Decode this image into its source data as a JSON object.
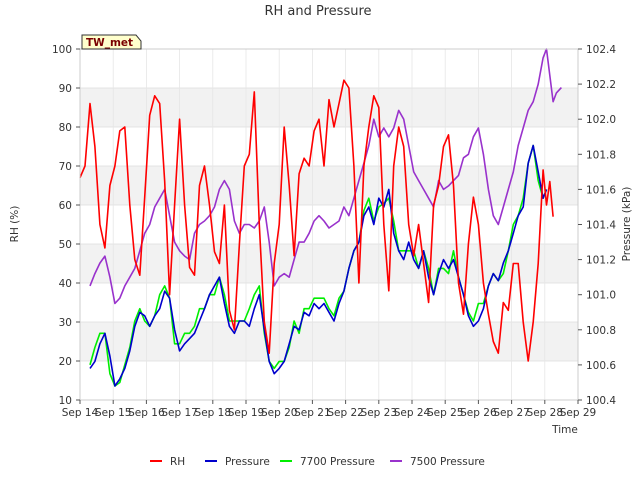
{
  "chart_data": {
    "type": "line",
    "title": "RH and Pressure",
    "xlabel": "Time",
    "ylabel_left": "RH (%)",
    "ylabel_right": "Pressure (kPa)",
    "badge": "TW_met",
    "x_ticks": [
      "Sep 14",
      "Sep 15",
      "Sep 16",
      "Sep 17",
      "Sep 18",
      "Sep 19",
      "Sep 20",
      "Sep 21",
      "Sep 22",
      "Sep 23",
      "Sep 24",
      "Sep 25",
      "Sep 26",
      "Sep 27",
      "Sep 28",
      "Sep 29"
    ],
    "xlim": [
      14,
      29
    ],
    "ylim_left": [
      10,
      100
    ],
    "y_ticks_left": [
      10,
      20,
      30,
      40,
      50,
      60,
      70,
      80,
      90,
      100
    ],
    "ylim_right": [
      100.4,
      102.4
    ],
    "y_ticks_right": [
      100.4,
      100.6,
      100.8,
      101.0,
      101.2,
      101.4,
      101.6,
      101.8,
      102.0,
      102.2,
      102.4
    ],
    "grid": true,
    "legend_position": "bottom",
    "series": [
      {
        "name": "RH",
        "axis": "left",
        "color": "#ff0000",
        "x": [
          14.0,
          14.15,
          14.3,
          14.45,
          14.6,
          14.75,
          14.9,
          15.05,
          15.2,
          15.35,
          15.5,
          15.65,
          15.8,
          15.95,
          16.1,
          16.25,
          16.4,
          16.55,
          16.7,
          16.85,
          17.0,
          17.15,
          17.3,
          17.45,
          17.6,
          17.75,
          17.9,
          18.05,
          18.2,
          18.35,
          18.5,
          18.65,
          18.8,
          18.95,
          19.1,
          19.25,
          19.4,
          19.55,
          19.7,
          19.85,
          20.0,
          20.15,
          20.3,
          20.45,
          20.6,
          20.75,
          20.9,
          21.05,
          21.2,
          21.35,
          21.5,
          21.65,
          21.8,
          21.95,
          22.1,
          22.25,
          22.4,
          22.55,
          22.7,
          22.85,
          23.0,
          23.15,
          23.3,
          23.45,
          23.6,
          23.75,
          23.9,
          24.05,
          24.2,
          24.35,
          24.5,
          24.65,
          24.8,
          24.95,
          25.1,
          25.25,
          25.4,
          25.55,
          25.7,
          25.85,
          26.0,
          26.15,
          26.3,
          26.45,
          26.6,
          26.75,
          26.9,
          27.05,
          27.2,
          27.35,
          27.5,
          27.65,
          27.8,
          27.95,
          28.05,
          28.15,
          28.25
        ],
        "values": [
          67,
          70,
          86,
          75,
          55,
          49,
          65,
          70,
          79,
          80,
          60,
          46,
          42,
          62,
          83,
          88,
          86,
          66,
          37,
          60,
          82,
          60,
          44,
          42,
          65,
          70,
          60,
          48,
          45,
          60,
          33,
          28,
          50,
          70,
          73,
          89,
          55,
          30,
          22,
          45,
          55,
          80,
          65,
          47,
          68,
          72,
          70,
          79,
          82,
          70,
          87,
          80,
          86,
          92,
          90,
          70,
          40,
          70,
          80,
          88,
          85,
          55,
          38,
          70,
          80,
          75,
          55,
          47,
          55,
          45,
          35,
          60,
          65,
          75,
          78,
          65,
          40,
          32,
          50,
          62,
          55,
          40,
          32,
          25,
          22,
          35,
          33,
          45,
          45,
          30,
          20,
          30,
          45,
          69,
          60,
          66,
          57
        ]
      },
      {
        "name": "Pressure",
        "axis": "right",
        "color": "#0000cc",
        "x": [
          14.3,
          14.45,
          14.6,
          14.75,
          14.9,
          15.05,
          15.2,
          15.35,
          15.5,
          15.65,
          15.8,
          15.95,
          16.1,
          16.25,
          16.4,
          16.55,
          16.7,
          16.85,
          17.0,
          17.15,
          17.3,
          17.45,
          17.6,
          17.75,
          17.9,
          18.05,
          18.2,
          18.35,
          18.5,
          18.65,
          18.8,
          18.95,
          19.1,
          19.25,
          19.4,
          19.55,
          19.7,
          19.85,
          20.0,
          20.15,
          20.3,
          20.45,
          20.6,
          20.75,
          20.9,
          21.05,
          21.2,
          21.35,
          21.5,
          21.65,
          21.8,
          21.95,
          22.1,
          22.25,
          22.4,
          22.55,
          22.7,
          22.85,
          23.0,
          23.15,
          23.3,
          23.45,
          23.6,
          23.75,
          23.9,
          24.05,
          24.2,
          24.35,
          24.5,
          24.65,
          24.8,
          24.95,
          25.1,
          25.25,
          25.4,
          25.55,
          25.7,
          25.85,
          26.0,
          26.15,
          26.3,
          26.45,
          26.6,
          26.75,
          26.9,
          27.05,
          27.2,
          27.35,
          27.5,
          27.65,
          27.8,
          27.95,
          28.05
        ],
        "values": [
          100.58,
          100.62,
          100.72,
          100.78,
          100.65,
          100.48,
          100.52,
          100.58,
          100.68,
          100.82,
          100.9,
          100.88,
          100.82,
          100.88,
          100.92,
          101.02,
          100.98,
          100.8,
          100.68,
          100.72,
          100.75,
          100.78,
          100.85,
          100.92,
          101.0,
          101.05,
          101.1,
          100.95,
          100.82,
          100.78,
          100.85,
          100.85,
          100.82,
          100.92,
          101.0,
          100.8,
          100.62,
          100.55,
          100.58,
          100.62,
          100.72,
          100.82,
          100.8,
          100.9,
          100.88,
          100.95,
          100.92,
          100.95,
          100.9,
          100.85,
          100.95,
          101.02,
          101.15,
          101.25,
          101.3,
          101.45,
          101.5,
          101.4,
          101.55,
          101.5,
          101.6,
          101.35,
          101.25,
          101.2,
          101.3,
          101.2,
          101.15,
          101.25,
          101.1,
          101.0,
          101.12,
          101.2,
          101.15,
          101.2,
          101.1,
          101.0,
          100.88,
          100.82,
          100.85,
          100.92,
          101.05,
          101.12,
          101.08,
          101.18,
          101.25,
          101.35,
          101.45,
          101.5,
          101.75,
          101.85,
          101.7,
          101.55,
          101.6
        ]
      },
      {
        "name": "7700 Pressure",
        "axis": "right",
        "color": "#00ee00",
        "x": [
          14.3,
          14.45,
          14.6,
          14.75,
          14.9,
          15.05,
          15.2,
          15.35,
          15.5,
          15.65,
          15.8,
          15.95,
          16.1,
          16.25,
          16.4,
          16.55,
          16.7,
          16.85,
          17.0,
          17.15,
          17.3,
          17.45,
          17.6,
          17.75,
          17.9,
          18.05,
          18.2,
          18.35,
          18.5,
          18.65,
          18.8,
          18.95,
          19.1,
          19.25,
          19.4,
          19.55,
          19.7,
          19.85,
          20.0,
          20.15,
          20.3,
          20.45,
          20.6,
          20.75,
          20.9,
          21.05,
          21.2,
          21.35,
          21.5,
          21.65,
          21.8,
          21.95,
          22.1,
          22.25,
          22.4,
          22.55,
          22.7,
          22.85,
          23.0,
          23.15,
          23.3,
          23.45,
          23.6,
          23.75,
          23.9,
          24.05,
          24.2,
          24.35,
          24.5,
          24.65,
          24.8,
          24.95,
          25.1,
          25.25,
          25.4,
          25.55,
          25.7,
          25.85,
          26.0,
          26.15,
          26.3,
          26.45,
          26.6,
          26.75,
          26.9,
          27.05,
          27.2,
          27.35,
          27.5,
          27.65,
          27.8,
          27.95,
          28.05
        ],
        "values": [
          100.6,
          100.7,
          100.78,
          100.78,
          100.55,
          100.48,
          100.5,
          100.6,
          100.7,
          100.85,
          100.92,
          100.85,
          100.82,
          100.88,
          101.0,
          101.05,
          100.98,
          100.72,
          100.72,
          100.78,
          100.78,
          100.82,
          100.92,
          100.92,
          101.0,
          101.0,
          101.1,
          101.0,
          100.85,
          100.85,
          100.85,
          100.85,
          100.92,
          101.0,
          101.05,
          100.78,
          100.62,
          100.58,
          100.62,
          100.62,
          100.7,
          100.85,
          100.78,
          100.92,
          100.92,
          100.98,
          100.98,
          100.98,
          100.92,
          100.88,
          100.98,
          101.02,
          101.15,
          101.25,
          101.3,
          101.48,
          101.55,
          101.42,
          101.5,
          101.52,
          101.55,
          101.42,
          101.25,
          101.25,
          101.25,
          101.25,
          101.15,
          101.25,
          101.15,
          101.0,
          101.15,
          101.15,
          101.12,
          101.25,
          101.1,
          101.0,
          100.9,
          100.85,
          100.95,
          100.95,
          101.05,
          101.12,
          101.08,
          101.12,
          101.25,
          101.4,
          101.45,
          101.55,
          101.75,
          101.85,
          101.65,
          101.55,
          101.6
        ]
      },
      {
        "name": "7500 Pressure",
        "axis": "right",
        "color": "#9932cc",
        "x": [
          14.3,
          14.45,
          14.6,
          14.75,
          14.9,
          15.05,
          15.2,
          15.35,
          15.5,
          15.65,
          15.8,
          15.95,
          16.1,
          16.25,
          16.4,
          16.55,
          16.7,
          16.85,
          17.0,
          17.15,
          17.3,
          17.45,
          17.6,
          17.75,
          17.9,
          18.05,
          18.2,
          18.35,
          18.5,
          18.65,
          18.8,
          18.95,
          19.1,
          19.25,
          19.4,
          19.55,
          19.7,
          19.85,
          20.0,
          20.15,
          20.3,
          20.45,
          20.6,
          20.75,
          20.9,
          21.05,
          21.2,
          21.35,
          21.5,
          21.65,
          21.8,
          21.95,
          22.1,
          22.25,
          22.4,
          22.55,
          22.7,
          22.85,
          23.0,
          23.15,
          23.3,
          23.45,
          23.6,
          23.75,
          23.9,
          24.05,
          24.2,
          24.35,
          24.5,
          24.65,
          24.8,
          24.95,
          25.1,
          25.25,
          25.4,
          25.55,
          25.7,
          25.85,
          26.0,
          26.15,
          26.3,
          26.45,
          26.6,
          26.75,
          26.9,
          27.05,
          27.2,
          27.35,
          27.5,
          27.65,
          27.8,
          27.95,
          28.05,
          28.15,
          28.25,
          28.35,
          28.5
        ],
        "values": [
          101.05,
          101.12,
          101.18,
          101.22,
          101.1,
          100.95,
          100.98,
          101.05,
          101.1,
          101.15,
          101.25,
          101.35,
          101.4,
          101.5,
          101.55,
          101.6,
          101.45,
          101.3,
          101.25,
          101.22,
          101.2,
          101.35,
          101.4,
          101.42,
          101.45,
          101.5,
          101.6,
          101.65,
          101.6,
          101.42,
          101.35,
          101.4,
          101.4,
          101.38,
          101.42,
          101.5,
          101.3,
          101.05,
          101.1,
          101.12,
          101.1,
          101.2,
          101.3,
          101.3,
          101.35,
          101.42,
          101.45,
          101.42,
          101.38,
          101.4,
          101.42,
          101.5,
          101.45,
          101.55,
          101.65,
          101.75,
          101.85,
          102.0,
          101.9,
          101.95,
          101.9,
          101.95,
          102.05,
          102.0,
          101.85,
          101.7,
          101.65,
          101.6,
          101.55,
          101.5,
          101.65,
          101.6,
          101.62,
          101.65,
          101.68,
          101.78,
          101.8,
          101.9,
          101.95,
          101.8,
          101.6,
          101.45,
          101.4,
          101.5,
          101.6,
          101.7,
          101.85,
          101.95,
          102.05,
          102.1,
          102.2,
          102.35,
          102.4,
          102.25,
          102.1,
          102.15,
          102.18
        ]
      }
    ]
  }
}
